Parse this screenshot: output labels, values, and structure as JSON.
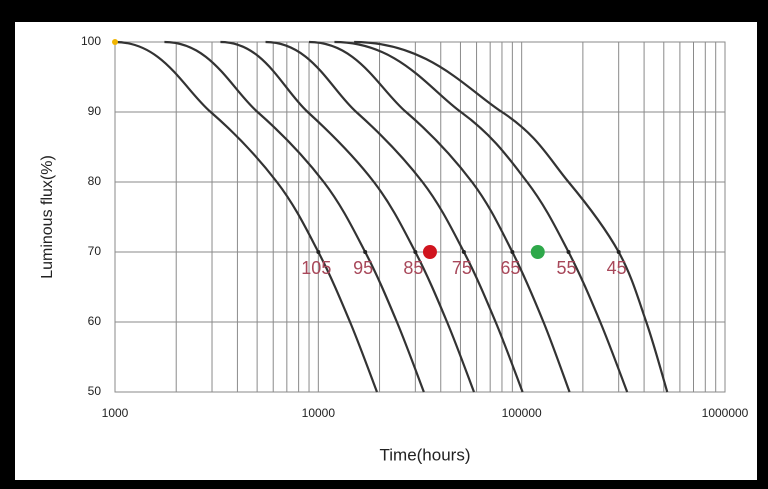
{
  "chart_data": {
    "type": "line",
    "xlabel": "Time(hours)",
    "ylabel": "Luminous flux(%)",
    "xscale": "log",
    "xlim": [
      1000,
      1000000
    ],
    "ylim": [
      50,
      100
    ],
    "xticks": [
      1000,
      10000,
      100000,
      1000000
    ],
    "yticks": [
      50,
      60,
      70,
      80,
      90,
      100
    ],
    "xminor": [
      2000,
      3000,
      4000,
      5000,
      6000,
      7000,
      8000,
      9000,
      20000,
      30000,
      40000,
      50000,
      60000,
      70000,
      80000,
      90000,
      200000,
      300000,
      400000,
      500000,
      600000,
      700000,
      800000,
      900000
    ],
    "grid": true,
    "label_color": "#a8485a",
    "series": [
      {
        "name": "105",
        "color": "#333333",
        "x": [
          1000,
          2954,
          6255,
          10000,
          14320,
          19430
        ],
        "values": [
          100,
          90,
          80,
          70,
          60,
          50
        ]
      },
      {
        "name": "95",
        "color": "#333333",
        "x": [
          1750,
          5023,
          10633,
          17000,
          24345,
          33035
        ],
        "values": [
          100,
          90,
          80,
          70,
          60,
          50
        ]
      },
      {
        "name": "85",
        "color": "#333333",
        "x": [
          3300,
          8864,
          18763,
          30000,
          42960,
          58290
        ],
        "values": [
          100,
          90,
          80,
          70,
          60,
          50
        ]
      },
      {
        "name": "75",
        "color": "#333333",
        "x": [
          5500,
          15365,
          32524,
          52000,
          74466,
          101040
        ],
        "values": [
          100,
          90,
          80,
          70,
          60,
          50
        ]
      },
      {
        "name": "65",
        "color": "#333333",
        "x": [
          9000,
          27000,
          57000,
          90000,
          128000,
          172000
        ],
        "values": [
          100,
          90,
          80,
          70,
          60,
          50
        ]
      },
      {
        "name": "55",
        "color": "#333333",
        "x": [
          12000,
          50233,
          106330,
          170000,
          243440,
          330340
        ],
        "values": [
          100,
          90,
          80,
          70,
          60,
          50
        ]
      },
      {
        "name": "45",
        "color": "#333333",
        "x": [
          15000,
          80000,
          170000,
          300000,
          410000,
          520000
        ],
        "values": [
          100,
          90,
          80,
          70,
          60,
          50
        ]
      }
    ],
    "points": [
      {
        "x": 1000,
        "y": 100,
        "color": "#f0b400",
        "size": 3
      },
      {
        "x": 35400,
        "y": 70,
        "color": "#d0141e",
        "size": 7
      },
      {
        "x": 120000,
        "y": 70,
        "color": "#2ea84a",
        "size": 7
      }
    ]
  }
}
